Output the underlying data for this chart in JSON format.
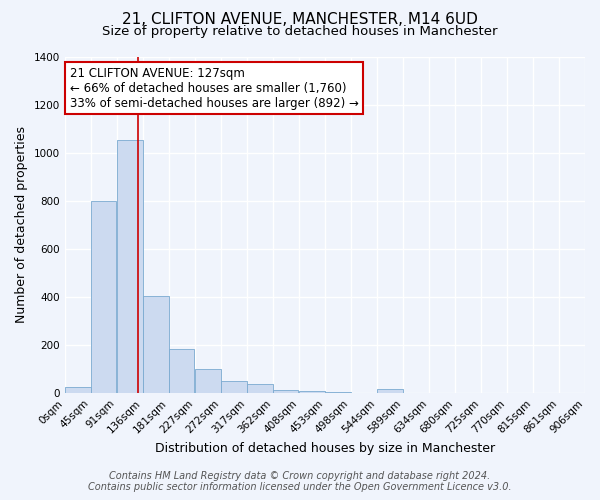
{
  "title": "21, CLIFTON AVENUE, MANCHESTER, M14 6UD",
  "subtitle": "Size of property relative to detached houses in Manchester",
  "xlabel": "Distribution of detached houses by size in Manchester",
  "ylabel": "Number of detached properties",
  "bar_color": "#ccdaf0",
  "bar_edge_color": "#7aaad0",
  "background_color": "#f0f4fc",
  "grid_color": "#ffffff",
  "bin_edges": [
    0,
    45,
    91,
    136,
    181,
    227,
    272,
    317,
    362,
    408,
    453,
    498,
    544,
    589,
    634,
    680,
    725,
    770,
    815,
    861,
    906
  ],
  "bin_labels": [
    "0sqm",
    "45sqm",
    "91sqm",
    "136sqm",
    "181sqm",
    "227sqm",
    "272sqm",
    "317sqm",
    "362sqm",
    "408sqm",
    "453sqm",
    "498sqm",
    "544sqm",
    "589sqm",
    "634sqm",
    "680sqm",
    "725sqm",
    "770sqm",
    "815sqm",
    "861sqm",
    "906sqm"
  ],
  "bar_heights": [
    25,
    800,
    1055,
    405,
    185,
    100,
    50,
    38,
    15,
    10,
    5,
    3,
    18,
    0,
    0,
    0,
    0,
    0,
    0,
    0
  ],
  "ylim": [
    0,
    1400
  ],
  "yticks": [
    0,
    200,
    400,
    600,
    800,
    1000,
    1200,
    1400
  ],
  "vline_x": 127,
  "vline_color": "#cc0000",
  "annotation_line1": "21 CLIFTON AVENUE: 127sqm",
  "annotation_line2": "← 66% of detached houses are smaller (1,760)",
  "annotation_line3": "33% of semi-detached houses are larger (892) →",
  "annotation_box_color": "#ffffff",
  "annotation_box_edge": "#cc0000",
  "footer_line1": "Contains HM Land Registry data © Crown copyright and database right 2024.",
  "footer_line2": "Contains public sector information licensed under the Open Government Licence v3.0.",
  "title_fontsize": 11,
  "subtitle_fontsize": 9.5,
  "tick_label_fontsize": 7.5,
  "axis_label_fontsize": 9,
  "annotation_fontsize": 8.5,
  "footer_fontsize": 7
}
